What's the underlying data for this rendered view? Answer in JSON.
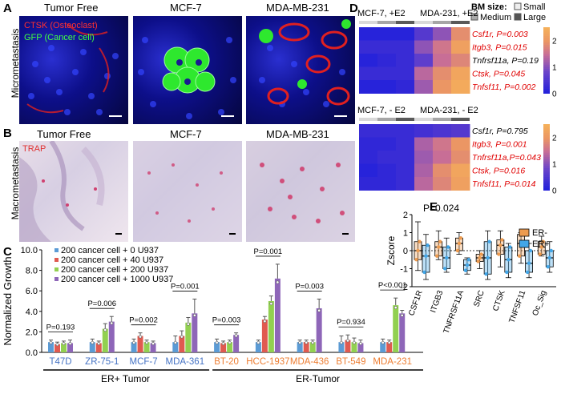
{
  "panelA": {
    "letter": "A",
    "row_label": "Micrometastasis",
    "titles": [
      "Tumor Free",
      "MCF-7",
      "MDA-MB-231"
    ],
    "stain_red": "CTSK (Osteoclast)",
    "stain_green": "GFP (Cancer cell)"
  },
  "panelB": {
    "letter": "B",
    "row_label": "Macrometastasis",
    "titles": [
      "Tumor Free",
      "MCF-7",
      "MDA-MB-231"
    ],
    "stain": "TRAP"
  },
  "panelC": {
    "letter": "C",
    "legend": [
      {
        "label": "200 cancer cell + 0 U937",
        "color": "#5b9bd5"
      },
      {
        "label": "200 cancer cell + 40 U937",
        "color": "#e05a50"
      },
      {
        "label": "200 cancer cell + 200 U937",
        "color": "#92d050"
      },
      {
        "label": "200 cancer cell + 1000 U937",
        "color": "#8e66b8"
      }
    ],
    "er_pos_label": "ER+ Tumor",
    "er_neg_label": "ER-Tumor",
    "pvals": [
      "P=0.193",
      "P=0.006",
      "P=0.002",
      "P=0.001",
      "P=0.003",
      "P=0.001",
      "P=0.003",
      "P=0.934",
      "P<0.001"
    ]
  },
  "chart_data": [
    {
      "type": "bar",
      "ylabel": "Normalized Growth",
      "ylim": [
        0,
        10
      ],
      "yticks": [
        "0.0",
        "2.0",
        "4.0",
        "6.0",
        "8.0",
        "10.0"
      ],
      "categories": [
        "T47D",
        "ZR-75-1",
        "MCF-7",
        "MDA-361",
        "BT-20",
        "HCC-1937",
        "MDA-436",
        "BT-549",
        "MDA-231"
      ],
      "category_colors": [
        "#4472c4",
        "#4472c4",
        "#4472c4",
        "#4472c4",
        "#ed7d31",
        "#ed7d31",
        "#ed7d31",
        "#ed7d31",
        "#ed7d31"
      ],
      "series": [
        {
          "name": "200 cancer cell + 0 U937",
          "values": [
            1.0,
            1.0,
            1.0,
            1.0,
            1.0,
            1.0,
            1.0,
            1.0,
            1.0
          ],
          "errors": [
            0.2,
            0.3,
            0.3,
            0.6,
            0.3,
            0.2,
            0.2,
            0.6,
            0.3
          ]
        },
        {
          "name": "200 cancer cell + 40 U937",
          "values": [
            0.8,
            0.9,
            1.6,
            1.6,
            0.9,
            3.2,
            1.0,
            1.2,
            1.0
          ],
          "errors": [
            0.2,
            0.2,
            0.3,
            0.5,
            0.2,
            0.3,
            0.2,
            0.5,
            0.2
          ]
        },
        {
          "name": "200 cancer cell + 200 U937",
          "values": [
            0.9,
            2.3,
            1.0,
            2.9,
            1.0,
            5.0,
            1.0,
            1.0,
            4.6
          ],
          "errors": [
            0.2,
            0.5,
            0.2,
            0.5,
            0.2,
            0.5,
            0.2,
            0.4,
            0.7
          ]
        },
        {
          "name": "200 cancer cell + 1000 U937",
          "values": [
            0.9,
            3.0,
            0.9,
            3.8,
            1.7,
            7.2,
            4.3,
            0.9,
            3.8
          ],
          "errors": [
            0.3,
            0.5,
            0.2,
            1.4,
            0.2,
            1.4,
            0.9,
            0.3,
            0.3
          ]
        }
      ]
    },
    {
      "type": "heatmap",
      "title": "MCF-7, +E2 | MDA-231, +E2",
      "rows": [
        "Csf1r, P=0.003",
        "Itgb3, P=0.015",
        "Tnfrsf11a, P=0.19",
        "Ctsk, P=0.045",
        "Tnfsf11, P=0.002"
      ],
      "row_colors": [
        "#e00000",
        "#e00000",
        "#000000",
        "#e00000",
        "#e00000"
      ],
      "values": [
        [
          0.1,
          0.1,
          0.1,
          0.6,
          1.1,
          1.9
        ],
        [
          0.3,
          0.3,
          0.3,
          1.1,
          1.6,
          2.2
        ],
        [
          0.1,
          0.2,
          0.3,
          0.7,
          1.5,
          1.8
        ],
        [
          0.3,
          0.3,
          0.3,
          1.4,
          1.9,
          2.3
        ],
        [
          0.1,
          0.1,
          0.2,
          1.2,
          2.0,
          2.4
        ]
      ],
      "colorbar_ticks": [
        "2",
        "1",
        "0"
      ]
    },
    {
      "type": "heatmap",
      "title": "MCF-7, - E2 | MDA-231, - E2",
      "rows": [
        "Csf1r, P=0.795",
        "Itgb3, P=0.001",
        "Tnfrsf11a,P=0.043",
        "Ctsk, P=0.016",
        "Tnfsf11, P=0.014"
      ],
      "row_colors": [
        "#000000",
        "#e00000",
        "#e00000",
        "#e00000",
        "#e00000"
      ],
      "values": [
        [
          0.3,
          0.3,
          0.3,
          0.4,
          0.5,
          0.6
        ],
        [
          0.2,
          0.2,
          0.3,
          1.3,
          1.6,
          2.0
        ],
        [
          0.2,
          0.3,
          0.3,
          1.2,
          1.5,
          1.9
        ],
        [
          0.1,
          0.2,
          0.3,
          1.3,
          1.9,
          2.3
        ],
        [
          0.2,
          0.2,
          0.3,
          1.4,
          1.8,
          2.2
        ]
      ],
      "colorbar_ticks": [
        "2",
        "1",
        "0"
      ]
    },
    {
      "type": "box",
      "ylabel": "Zscore",
      "ylim": [
        -2,
        2
      ],
      "yticks": [
        "2",
        "1",
        "0",
        "-1",
        "-2"
      ],
      "categories": [
        "CSF1R",
        "ITGB3",
        "TNFRSF11A",
        "SRC",
        "CTSK",
        "TNFSF11",
        "Oc_Sig"
      ],
      "pvalue": "P=0.024",
      "series": [
        {
          "name": "ER-",
          "color": "#ed9b4f",
          "box": [
            [
              -0.5,
              0.0,
              0.5,
              -1.1,
              1.6
            ],
            [
              -0.3,
              0.2,
              0.5,
              -0.5,
              1.1
            ],
            [
              0.0,
              0.4,
              0.7,
              -0.2,
              1.0
            ],
            [
              -0.6,
              -0.4,
              -0.2,
              -1.0,
              0.0
            ],
            [
              -0.2,
              0.3,
              0.6,
              -0.9,
              1.1
            ],
            [
              -0.3,
              0.4,
              0.9,
              -0.7,
              1.0
            ],
            [
              -0.2,
              0.2,
              0.5,
              -0.3,
              0.8
            ]
          ]
        },
        {
          "name": "ER+",
          "color": "#41a6e8",
          "box": [
            [
              -1.2,
              -0.3,
              0.3,
              -1.6,
              0.9
            ],
            [
              -1.0,
              -0.4,
              0.2,
              -1.2,
              0.7
            ],
            [
              -1.1,
              -0.8,
              -0.5,
              -1.3,
              -0.4
            ],
            [
              -1.3,
              -0.4,
              0.5,
              -1.6,
              1.1
            ],
            [
              -1.2,
              -0.5,
              0.2,
              -1.5,
              0.4
            ],
            [
              -1.2,
              -0.7,
              0.0,
              -1.5,
              0.4
            ],
            [
              -0.9,
              -0.4,
              0.0,
              -1.2,
              0.5
            ]
          ]
        }
      ]
    }
  ],
  "panelD": {
    "letter": "D",
    "legend_title": "BM size:",
    "size_labels": [
      "Small",
      "Medium",
      "Large"
    ]
  },
  "panelE": {
    "letter": "E"
  }
}
